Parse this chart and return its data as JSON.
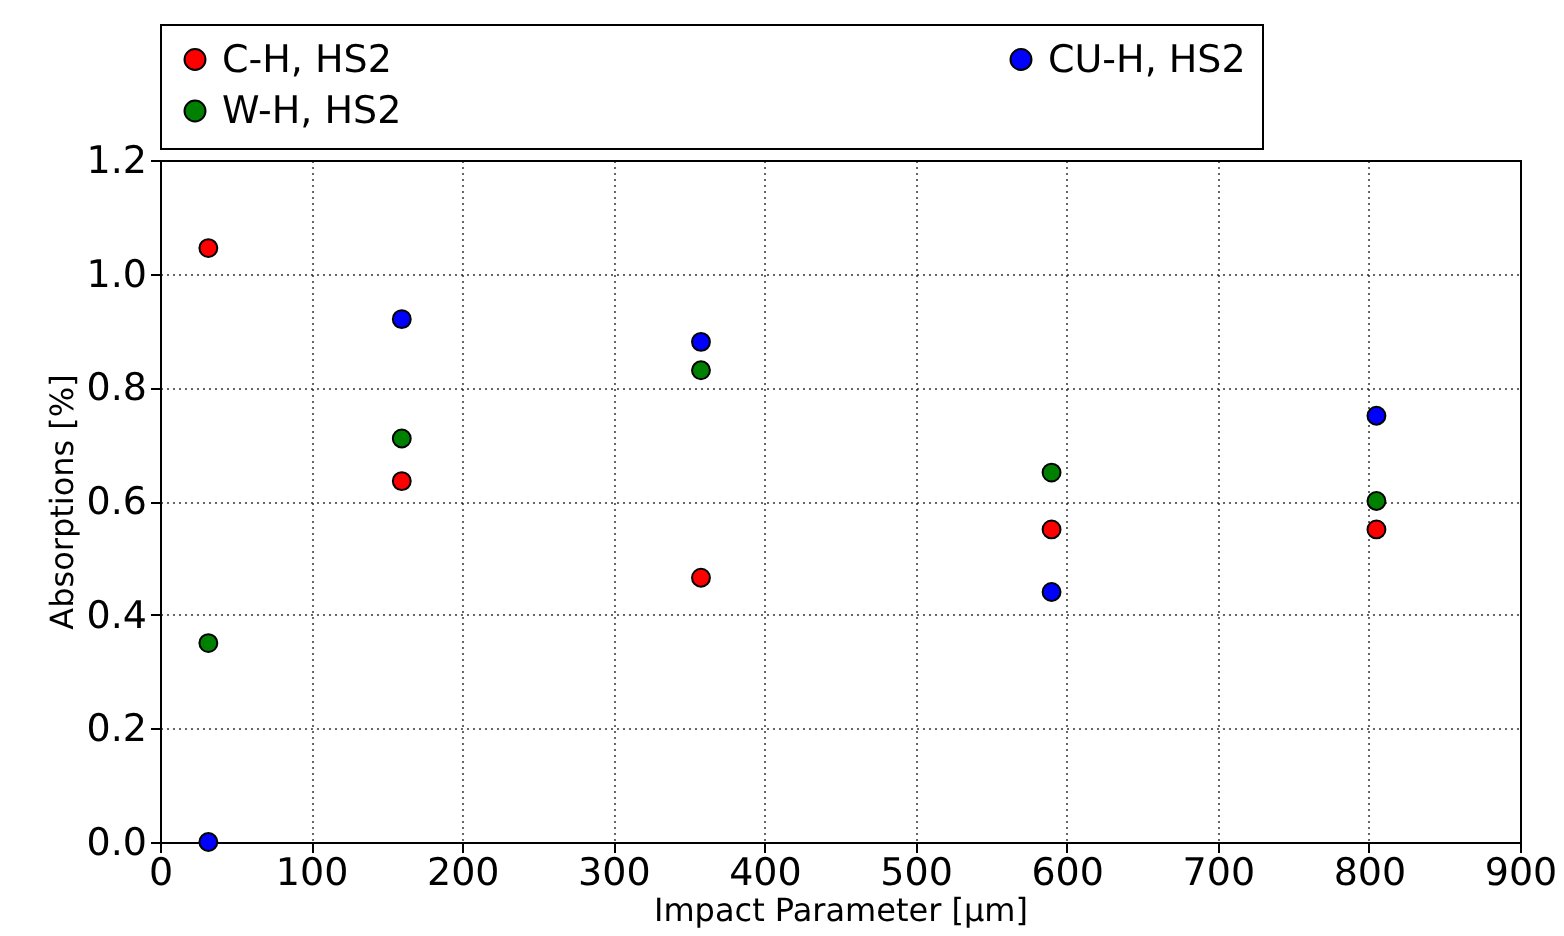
{
  "chart_data": {
    "type": "scatter",
    "xlabel": "Impact Parameter [μm]",
    "ylabel": "Absorptions [%]",
    "x": [
      32,
      160,
      358,
      590,
      805
    ],
    "series": [
      {
        "name": "C-H, HS2",
        "color": "#ff0000",
        "values": [
          1.045,
          0.635,
          0.465,
          0.55,
          0.55
        ]
      },
      {
        "name": "W-H, HS2",
        "color": "#008000",
        "values": [
          0.35,
          0.71,
          0.83,
          0.65,
          0.6
        ]
      },
      {
        "name": "CU-H, HS2",
        "color": "#0000ff",
        "values": [
          0.0,
          0.92,
          0.88,
          0.44,
          0.75
        ]
      }
    ],
    "xlim": [
      0,
      900
    ],
    "xticks": [
      0,
      100,
      200,
      300,
      400,
      500,
      600,
      700,
      800,
      900
    ],
    "ylim": [
      0,
      1.2
    ],
    "yticks": [
      {
        "value": 0,
        "label": "0.0"
      },
      0.2,
      0.4,
      0.6,
      0.8,
      {
        "value": 1,
        "label": "1.0"
      },
      1.2
    ],
    "grid": true,
    "legend": "top",
    "marker": "circle"
  }
}
